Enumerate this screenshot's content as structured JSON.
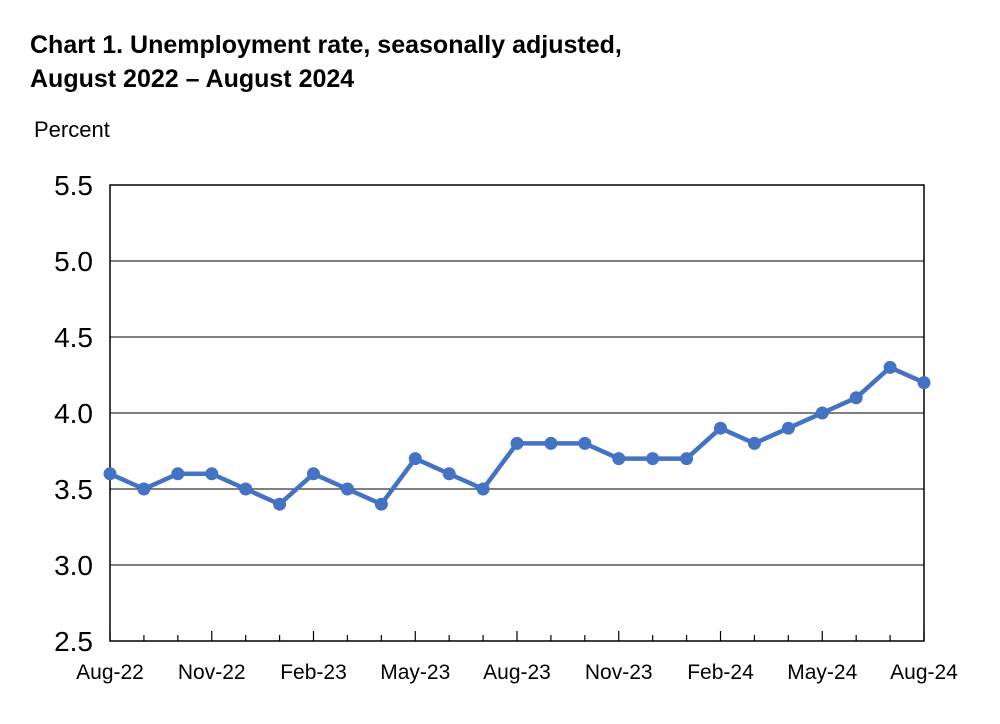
{
  "chart_data": {
    "type": "line",
    "title": "Chart 1. Unemployment rate, seasonally adjusted,",
    "subtitle": "August 2022 – August 2024",
    "ylabel": "Percent",
    "xlabel": "",
    "ylim": [
      2.5,
      5.5
    ],
    "yticks": [
      "5.5",
      "5.0",
      "4.5",
      "4.0",
      "3.5",
      "3.0",
      "2.5"
    ],
    "ytick_values": [
      5.5,
      5.0,
      4.5,
      4.0,
      3.5,
      3.0,
      2.5
    ],
    "grid": true,
    "x": [
      "Aug-22",
      "Sep-22",
      "Oct-22",
      "Nov-22",
      "Dec-22",
      "Jan-23",
      "Feb-23",
      "Mar-23",
      "Apr-23",
      "May-23",
      "Jun-23",
      "Jul-23",
      "Aug-23",
      "Sep-23",
      "Oct-23",
      "Nov-23",
      "Dec-23",
      "Jan-24",
      "Feb-24",
      "Mar-24",
      "Apr-24",
      "May-24",
      "Jun-24",
      "Jul-24",
      "Aug-24"
    ],
    "xtick_labels": [
      "Aug-22",
      "Nov-22",
      "Feb-23",
      "May-23",
      "Aug-23",
      "Nov-23",
      "Feb-24",
      "May-24",
      "Aug-24"
    ],
    "series": [
      {
        "values": [
          3.6,
          3.5,
          3.6,
          3.6,
          3.5,
          3.4,
          3.6,
          3.5,
          3.4,
          3.7,
          3.6,
          3.5,
          3.8,
          3.8,
          3.8,
          3.7,
          3.7,
          3.7,
          3.9,
          3.8,
          3.9,
          4.0,
          4.1,
          4.3,
          4.2
        ],
        "color": "#4472c4"
      }
    ]
  }
}
